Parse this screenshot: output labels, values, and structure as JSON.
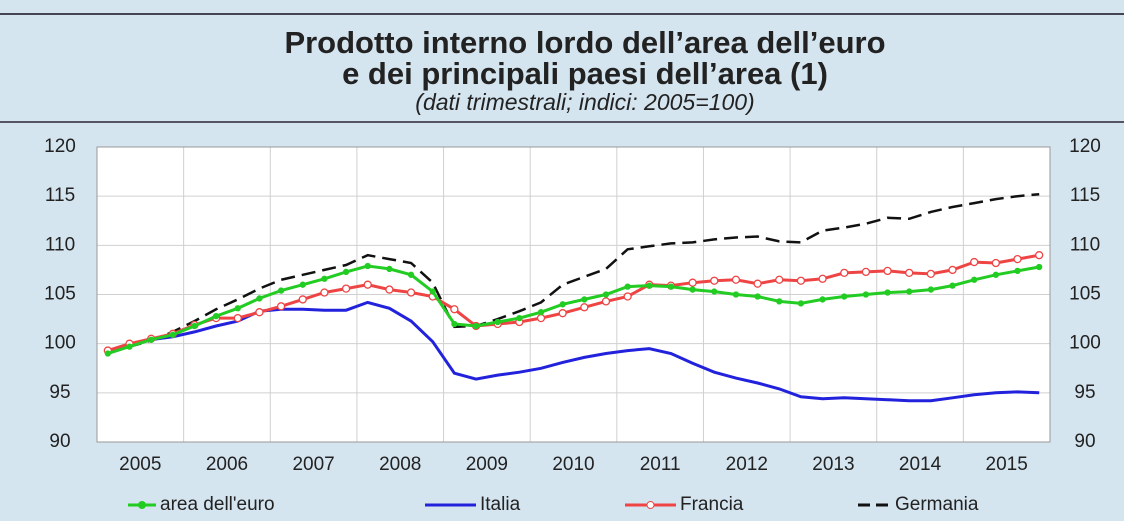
{
  "chart_data": {
    "type": "line",
    "title": "Prodotto interno lordo dell’area dell’euro",
    "title_line2": "e dei principali paesi dell’area (1)",
    "subtitle": "(dati trimestrali; indici: 2005=100)",
    "categories": [
      "2005",
      null,
      null,
      null,
      "2006",
      null,
      null,
      null,
      "2007",
      null,
      null,
      null,
      "2008",
      null,
      null,
      null,
      "2009",
      null,
      null,
      null,
      "2010",
      null,
      null,
      null,
      "2011",
      null,
      null,
      null,
      "2012",
      null,
      null,
      null,
      "2013",
      null,
      null,
      null,
      "2014",
      null,
      null,
      null,
      "2015",
      null,
      null,
      null
    ],
    "series": [
      {
        "name": "area dell'euro",
        "color": "#22cc22",
        "marker": "dot",
        "values": [
          99.0,
          99.7,
          100.4,
          100.9,
          101.8,
          102.8,
          103.6,
          104.6,
          105.4,
          106.0,
          106.6,
          107.3,
          107.9,
          107.6,
          107.0,
          105.3,
          102.0,
          101.8,
          102.2,
          102.6,
          103.2,
          104.0,
          104.5,
          105.0,
          105.8,
          105.9,
          105.8,
          105.5,
          105.3,
          105.0,
          104.8,
          104.3,
          104.1,
          104.5,
          104.8,
          105.0,
          105.2,
          105.3,
          105.5,
          105.9,
          106.5,
          107.0,
          107.4,
          107.8
        ]
      },
      {
        "name": "Italia",
        "color": "#2222dd",
        "values": [
          99.2,
          99.8,
          100.4,
          100.7,
          101.2,
          101.8,
          102.3,
          103.3,
          103.5,
          103.5,
          103.4,
          103.4,
          104.2,
          103.6,
          102.3,
          100.2,
          97.0,
          96.4,
          96.8,
          97.1,
          97.5,
          98.1,
          98.6,
          99.0,
          99.3,
          99.5,
          99.0,
          98.0,
          97.1,
          96.5,
          96.0,
          95.4,
          94.6,
          94.4,
          94.5,
          94.4,
          94.3,
          94.2,
          94.2,
          94.5,
          94.8,
          95.0,
          95.1,
          95.0
        ]
      },
      {
        "name": "Francia",
        "color": "#ee4444",
        "marker": "circle",
        "values": [
          99.3,
          100.0,
          100.5,
          101.0,
          101.9,
          102.6,
          102.6,
          103.2,
          103.8,
          104.5,
          105.2,
          105.6,
          106.0,
          105.5,
          105.2,
          104.8,
          103.5,
          101.8,
          102.0,
          102.2,
          102.6,
          103.1,
          103.7,
          104.3,
          104.8,
          106.0,
          105.9,
          106.2,
          106.4,
          106.5,
          106.1,
          106.5,
          106.4,
          106.6,
          107.2,
          107.3,
          107.4,
          107.2,
          107.1,
          107.5,
          108.3,
          108.2,
          108.6,
          109.0
        ]
      },
      {
        "name": "Germania",
        "color": "#111111",
        "dash": true,
        "values": [
          99.0,
          99.7,
          100.3,
          101.2,
          102.3,
          103.5,
          104.5,
          105.6,
          106.5,
          107.0,
          107.5,
          108.0,
          109.0,
          108.6,
          108.2,
          106.2,
          101.7,
          101.8,
          102.5,
          103.3,
          104.2,
          106.0,
          106.8,
          107.6,
          109.6,
          109.9,
          110.2,
          110.3,
          110.6,
          110.8,
          110.9,
          110.4,
          110.3,
          111.5,
          111.8,
          112.2,
          112.8,
          112.7,
          113.4,
          113.9,
          114.3,
          114.7,
          115.0,
          115.2
        ]
      }
    ],
    "ylim": [
      90,
      120
    ],
    "yticks": [
      90,
      95,
      100,
      105,
      110,
      115,
      120
    ],
    "y2lim": [
      90,
      120
    ],
    "y2ticks": [
      90,
      95,
      100,
      105,
      110,
      115,
      120
    ],
    "grid": true
  }
}
